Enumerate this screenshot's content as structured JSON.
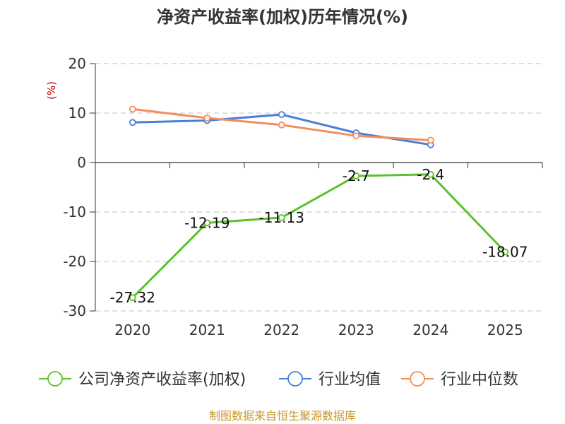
{
  "chart_data": {
    "type": "line",
    "title": "净资产收益率(加权)历年情况(%)",
    "ylabel": "(%)",
    "categories": [
      "2020",
      "2021",
      "2022",
      "2023",
      "2024",
      "2025"
    ],
    "ylim": [
      -30,
      20
    ],
    "yticks": [
      20,
      10,
      0,
      -10,
      -20,
      -30
    ],
    "grid": true,
    "legend_position": "bottom",
    "series": [
      {
        "name": "公司净资产收益率(加权)",
        "color": "#5cc22b",
        "values": [
          -27.32,
          -12.19,
          -11.13,
          -2.7,
          -2.4,
          -18.07
        ],
        "labels": [
          "-27.32",
          "-12.19",
          "-11.13",
          "-2.7",
          "-2.4",
          "-18.07"
        ]
      },
      {
        "name": "行业均值",
        "color": "#4a7fd8",
        "values": [
          8.1,
          8.5,
          9.7,
          6.0,
          3.6,
          null
        ]
      },
      {
        "name": "行业中位数",
        "color": "#f58d5a",
        "values": [
          10.8,
          9.0,
          7.6,
          5.4,
          4.5,
          null
        ]
      }
    ]
  },
  "source": "制图数据来自恒生聚源数据库"
}
